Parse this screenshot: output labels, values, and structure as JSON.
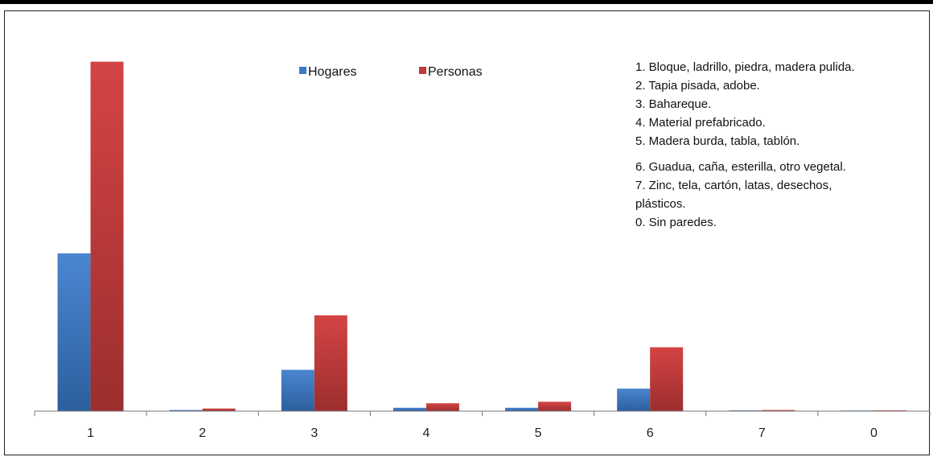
{
  "chart_data": {
    "type": "bar",
    "categories": [
      "1",
      "2",
      "3",
      "4",
      "5",
      "6",
      "7",
      "0"
    ],
    "series": [
      {
        "name": "Hogares",
        "values": [
          42,
          0.3,
          11,
          0.9,
          0.9,
          6,
          0.2,
          0.05
        ],
        "color": "#3b78c4"
      },
      {
        "name": "Personas",
        "values": [
          93,
          0.7,
          25.5,
          2.1,
          2.5,
          17,
          0.3,
          0.2
        ],
        "color": "#c03a3a"
      }
    ],
    "ylim": [
      0,
      100
    ],
    "grid": false,
    "legend_placement": "top-center",
    "notes": [
      "1. Bloque, ladrillo, piedra, madera pulida.",
      "2. Tapia pisada, adobe.",
      "3. Bahareque.",
      "4. Material prefabricado.",
      "5. Madera burda, tabla, tablón.",
      "6. Guadua, caña, esterilla, otro vegetal.",
      "7. Zinc, tela, cartón, latas, desechos,",
      "plásticos.",
      "0. Sin paredes."
    ]
  }
}
